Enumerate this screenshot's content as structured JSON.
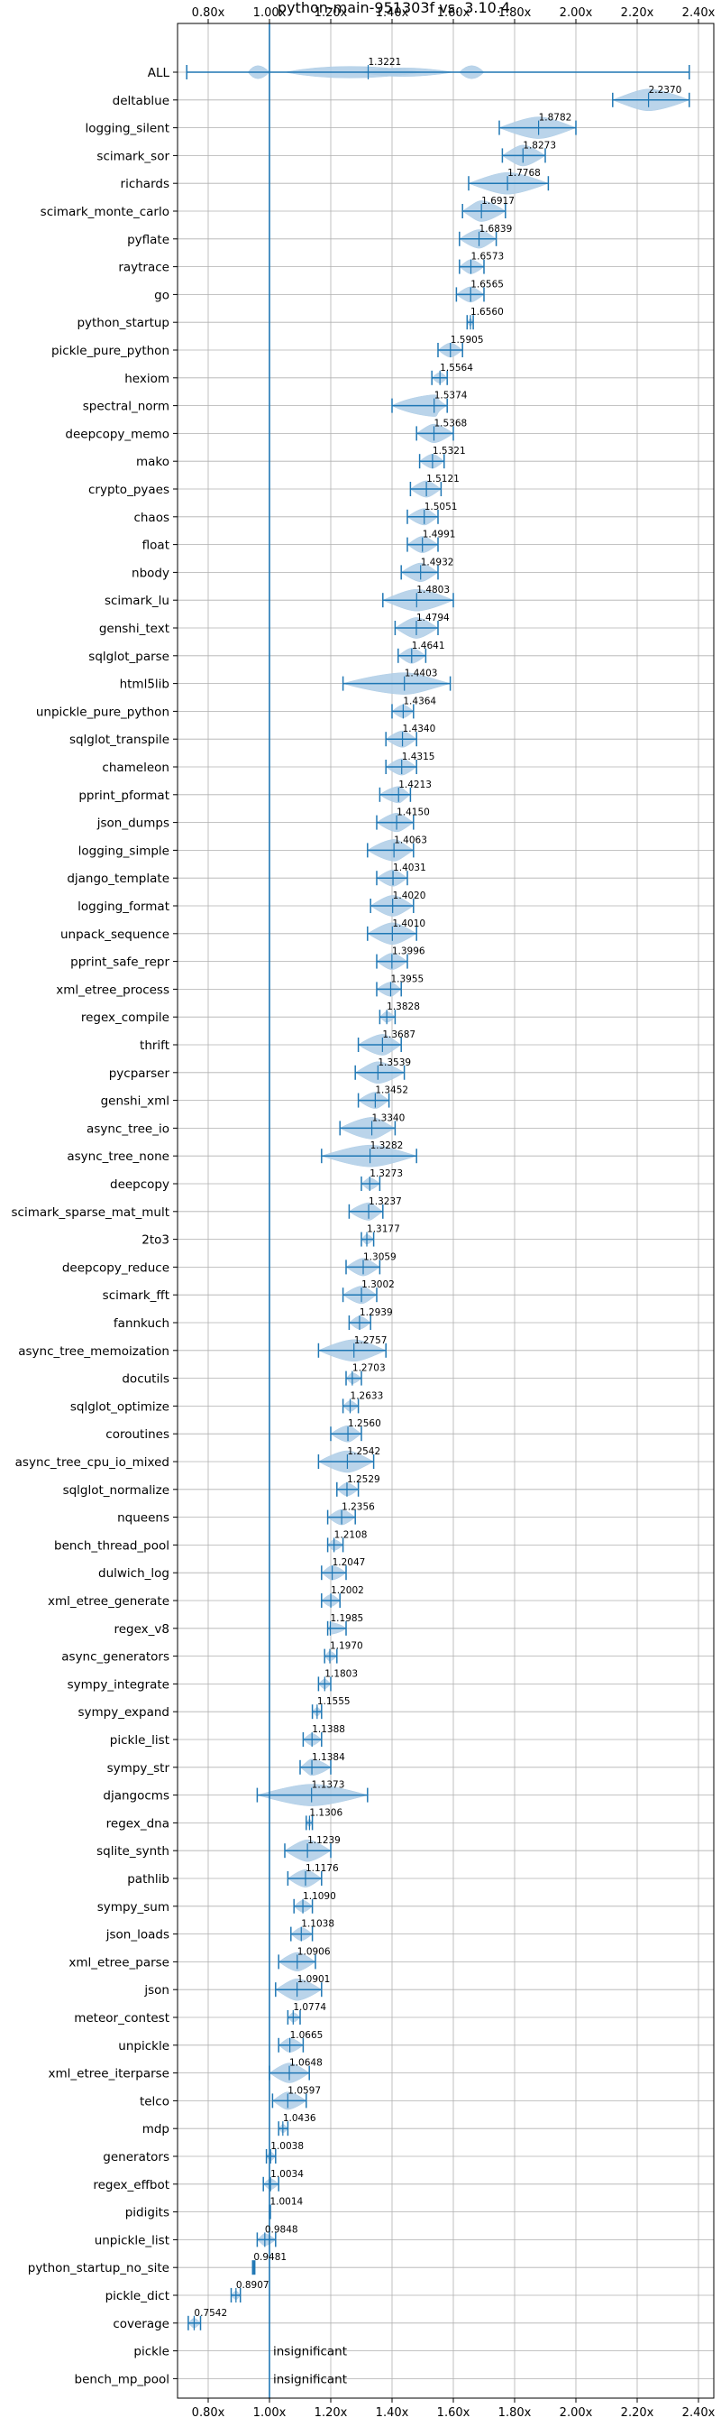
{
  "chart_data": {
    "type": "violin",
    "title": "python-main-951303f vs. 3.10.4",
    "xlim": [
      0.7,
      2.45
    ],
    "xticks": [
      0.8,
      1.0,
      1.2,
      1.4,
      1.6,
      1.8,
      2.0,
      2.2,
      2.4
    ],
    "xtick_labels": [
      "0.80x",
      "1.00x",
      "1.20x",
      "1.40x",
      "1.60x",
      "1.80x",
      "2.00x",
      "2.20x",
      "2.40x"
    ],
    "reference_line": 1.0,
    "grid": true,
    "colors": {
      "violin": "#aecde6",
      "line": "#1f77b4"
    },
    "benchmarks": [
      {
        "name": "ALL",
        "value": "1.3221",
        "mean": 1.3221,
        "min": 0.73,
        "max": 2.37
      },
      {
        "name": "deltablue",
        "value": "2.2370",
        "mean": 2.237,
        "min": 2.12,
        "max": 2.37
      },
      {
        "name": "logging_silent",
        "value": "1.8782",
        "mean": 1.8782,
        "min": 1.75,
        "max": 2.0
      },
      {
        "name": "scimark_sor",
        "value": "1.8273",
        "mean": 1.8273,
        "min": 1.76,
        "max": 1.9
      },
      {
        "name": "richards",
        "value": "1.7768",
        "mean": 1.7768,
        "min": 1.65,
        "max": 1.91
      },
      {
        "name": "scimark_monte_carlo",
        "value": "1.6917",
        "mean": 1.6917,
        "min": 1.63,
        "max": 1.77
      },
      {
        "name": "pyflate",
        "value": "1.6839",
        "mean": 1.6839,
        "min": 1.62,
        "max": 1.74
      },
      {
        "name": "raytrace",
        "value": "1.6573",
        "mean": 1.6573,
        "min": 1.62,
        "max": 1.7
      },
      {
        "name": "go",
        "value": "1.6565",
        "mean": 1.6565,
        "min": 1.61,
        "max": 1.7
      },
      {
        "name": "python_startup",
        "value": "1.6560",
        "mean": 1.656,
        "min": 1.645,
        "max": 1.665
      },
      {
        "name": "pickle_pure_python",
        "value": "1.5905",
        "mean": 1.5905,
        "min": 1.55,
        "max": 1.63
      },
      {
        "name": "hexiom",
        "value": "1.5564",
        "mean": 1.5564,
        "min": 1.53,
        "max": 1.58
      },
      {
        "name": "spectral_norm",
        "value": "1.5374",
        "mean": 1.5374,
        "min": 1.4,
        "max": 1.58
      },
      {
        "name": "deepcopy_memo",
        "value": "1.5368",
        "mean": 1.5368,
        "min": 1.48,
        "max": 1.6
      },
      {
        "name": "mako",
        "value": "1.5321",
        "mean": 1.5321,
        "min": 1.49,
        "max": 1.57
      },
      {
        "name": "crypto_pyaes",
        "value": "1.5121",
        "mean": 1.5121,
        "min": 1.46,
        "max": 1.56
      },
      {
        "name": "chaos",
        "value": "1.5051",
        "mean": 1.5051,
        "min": 1.45,
        "max": 1.55
      },
      {
        "name": "float",
        "value": "1.4991",
        "mean": 1.4991,
        "min": 1.45,
        "max": 1.55
      },
      {
        "name": "nbody",
        "value": "1.4932",
        "mean": 1.4932,
        "min": 1.43,
        "max": 1.55
      },
      {
        "name": "scimark_lu",
        "value": "1.4803",
        "mean": 1.4803,
        "min": 1.37,
        "max": 1.6
      },
      {
        "name": "genshi_text",
        "value": "1.4794",
        "mean": 1.4794,
        "min": 1.41,
        "max": 1.55
      },
      {
        "name": "sqlglot_parse",
        "value": "1.4641",
        "mean": 1.4641,
        "min": 1.42,
        "max": 1.51
      },
      {
        "name": "html5lib",
        "value": "1.4403",
        "mean": 1.4403,
        "min": 1.24,
        "max": 1.59
      },
      {
        "name": "unpickle_pure_python",
        "value": "1.4364",
        "mean": 1.4364,
        "min": 1.4,
        "max": 1.47
      },
      {
        "name": "sqlglot_transpile",
        "value": "1.4340",
        "mean": 1.434,
        "min": 1.38,
        "max": 1.48
      },
      {
        "name": "chameleon",
        "value": "1.4315",
        "mean": 1.4315,
        "min": 1.38,
        "max": 1.48
      },
      {
        "name": "pprint_pformat",
        "value": "1.4213",
        "mean": 1.4213,
        "min": 1.36,
        "max": 1.46
      },
      {
        "name": "json_dumps",
        "value": "1.4150",
        "mean": 1.415,
        "min": 1.35,
        "max": 1.47
      },
      {
        "name": "logging_simple",
        "value": "1.4063",
        "mean": 1.4063,
        "min": 1.32,
        "max": 1.47
      },
      {
        "name": "django_template",
        "value": "1.4031",
        "mean": 1.4031,
        "min": 1.35,
        "max": 1.45
      },
      {
        "name": "logging_format",
        "value": "1.4020",
        "mean": 1.402,
        "min": 1.33,
        "max": 1.47
      },
      {
        "name": "unpack_sequence",
        "value": "1.4010",
        "mean": 1.401,
        "min": 1.32,
        "max": 1.48
      },
      {
        "name": "pprint_safe_repr",
        "value": "1.3996",
        "mean": 1.3996,
        "min": 1.35,
        "max": 1.45
      },
      {
        "name": "xml_etree_process",
        "value": "1.3955",
        "mean": 1.3955,
        "min": 1.35,
        "max": 1.43
      },
      {
        "name": "regex_compile",
        "value": "1.3828",
        "mean": 1.3828,
        "min": 1.36,
        "max": 1.41
      },
      {
        "name": "thrift",
        "value": "1.3687",
        "mean": 1.3687,
        "min": 1.29,
        "max": 1.43
      },
      {
        "name": "pycparser",
        "value": "1.3539",
        "mean": 1.3539,
        "min": 1.28,
        "max": 1.44
      },
      {
        "name": "genshi_xml",
        "value": "1.3452",
        "mean": 1.3452,
        "min": 1.29,
        "max": 1.39
      },
      {
        "name": "async_tree_io",
        "value": "1.3340",
        "mean": 1.334,
        "min": 1.23,
        "max": 1.41
      },
      {
        "name": "async_tree_none",
        "value": "1.3282",
        "mean": 1.3282,
        "min": 1.17,
        "max": 1.48
      },
      {
        "name": "deepcopy",
        "value": "1.3273",
        "mean": 1.3273,
        "min": 1.3,
        "max": 1.36
      },
      {
        "name": "scimark_sparse_mat_mult",
        "value": "1.3237",
        "mean": 1.3237,
        "min": 1.26,
        "max": 1.37
      },
      {
        "name": "2to3",
        "value": "1.3177",
        "mean": 1.3177,
        "min": 1.3,
        "max": 1.34
      },
      {
        "name": "deepcopy_reduce",
        "value": "1.3059",
        "mean": 1.3059,
        "min": 1.25,
        "max": 1.36
      },
      {
        "name": "scimark_fft",
        "value": "1.3002",
        "mean": 1.3002,
        "min": 1.24,
        "max": 1.35
      },
      {
        "name": "fannkuch",
        "value": "1.2939",
        "mean": 1.2939,
        "min": 1.26,
        "max": 1.33
      },
      {
        "name": "async_tree_memoization",
        "value": "1.2757",
        "mean": 1.2757,
        "min": 1.16,
        "max": 1.38
      },
      {
        "name": "docutils",
        "value": "1.2703",
        "mean": 1.2703,
        "min": 1.25,
        "max": 1.3
      },
      {
        "name": "sqlglot_optimize",
        "value": "1.2633",
        "mean": 1.2633,
        "min": 1.24,
        "max": 1.29
      },
      {
        "name": "coroutines",
        "value": "1.2560",
        "mean": 1.256,
        "min": 1.2,
        "max": 1.3
      },
      {
        "name": "async_tree_cpu_io_mixed",
        "value": "1.2542",
        "mean": 1.2542,
        "min": 1.16,
        "max": 1.34
      },
      {
        "name": "sqlglot_normalize",
        "value": "1.2529",
        "mean": 1.2529,
        "min": 1.22,
        "max": 1.29
      },
      {
        "name": "nqueens",
        "value": "1.2356",
        "mean": 1.2356,
        "min": 1.19,
        "max": 1.28
      },
      {
        "name": "bench_thread_pool",
        "value": "1.2108",
        "mean": 1.2108,
        "min": 1.19,
        "max": 1.24
      },
      {
        "name": "dulwich_log",
        "value": "1.2047",
        "mean": 1.2047,
        "min": 1.17,
        "max": 1.25
      },
      {
        "name": "xml_etree_generate",
        "value": "1.2002",
        "mean": 1.2002,
        "min": 1.17,
        "max": 1.23
      },
      {
        "name": "regex_v8",
        "value": "1.1985",
        "mean": 1.1985,
        "min": 1.19,
        "max": 1.25
      },
      {
        "name": "async_generators",
        "value": "1.1970",
        "mean": 1.197,
        "min": 1.18,
        "max": 1.22
      },
      {
        "name": "sympy_integrate",
        "value": "1.1803",
        "mean": 1.1803,
        "min": 1.16,
        "max": 1.2
      },
      {
        "name": "sympy_expand",
        "value": "1.1555",
        "mean": 1.1555,
        "min": 1.14,
        "max": 1.17
      },
      {
        "name": "pickle_list",
        "value": "1.1388",
        "mean": 1.1388,
        "min": 1.11,
        "max": 1.17
      },
      {
        "name": "sympy_str",
        "value": "1.1384",
        "mean": 1.1384,
        "min": 1.1,
        "max": 1.2
      },
      {
        "name": "djangocms",
        "value": "1.1373",
        "mean": 1.1373,
        "min": 0.96,
        "max": 1.32
      },
      {
        "name": "regex_dna",
        "value": "1.1306",
        "mean": 1.1306,
        "min": 1.12,
        "max": 1.14
      },
      {
        "name": "sqlite_synth",
        "value": "1.1239",
        "mean": 1.1239,
        "min": 1.05,
        "max": 1.2
      },
      {
        "name": "pathlib",
        "value": "1.1176",
        "mean": 1.1176,
        "min": 1.06,
        "max": 1.17
      },
      {
        "name": "sympy_sum",
        "value": "1.1090",
        "mean": 1.109,
        "min": 1.08,
        "max": 1.14
      },
      {
        "name": "json_loads",
        "value": "1.1038",
        "mean": 1.1038,
        "min": 1.07,
        "max": 1.14
      },
      {
        "name": "xml_etree_parse",
        "value": "1.0906",
        "mean": 1.0906,
        "min": 1.03,
        "max": 1.15
      },
      {
        "name": "json",
        "value": "1.0901",
        "mean": 1.0901,
        "min": 1.02,
        "max": 1.17
      },
      {
        "name": "meteor_contest",
        "value": "1.0774",
        "mean": 1.0774,
        "min": 1.06,
        "max": 1.1
      },
      {
        "name": "unpickle",
        "value": "1.0665",
        "mean": 1.0665,
        "min": 1.03,
        "max": 1.11
      },
      {
        "name": "xml_etree_iterparse",
        "value": "1.0648",
        "mean": 1.0648,
        "min": 1.0,
        "max": 1.13
      },
      {
        "name": "telco",
        "value": "1.0597",
        "mean": 1.0597,
        "min": 1.01,
        "max": 1.12
      },
      {
        "name": "mdp",
        "value": "1.0436",
        "mean": 1.0436,
        "min": 1.03,
        "max": 1.06
      },
      {
        "name": "generators",
        "value": "1.0038",
        "mean": 1.0038,
        "min": 0.99,
        "max": 1.02
      },
      {
        "name": "regex_effbot",
        "value": "1.0034",
        "mean": 1.0034,
        "min": 0.98,
        "max": 1.03
      },
      {
        "name": "pidigits",
        "value": "1.0014",
        "mean": 1.0014,
        "min": 1.0,
        "max": 1.003
      },
      {
        "name": "unpickle_list",
        "value": "0.9848",
        "mean": 0.9848,
        "min": 0.96,
        "max": 1.02
      },
      {
        "name": "python_startup_no_site",
        "value": "0.9481",
        "mean": 0.9481,
        "min": 0.945,
        "max": 0.952
      },
      {
        "name": "pickle_dict",
        "value": "0.8907",
        "mean": 0.8907,
        "min": 0.875,
        "max": 0.905
      },
      {
        "name": "coverage",
        "value": "0.7542",
        "mean": 0.7542,
        "min": 0.735,
        "max": 0.775
      },
      {
        "name": "pickle",
        "value": "insignificant",
        "mean": null,
        "min": null,
        "max": null
      },
      {
        "name": "bench_mp_pool",
        "value": "insignificant",
        "mean": null,
        "min": null,
        "max": null
      }
    ]
  }
}
